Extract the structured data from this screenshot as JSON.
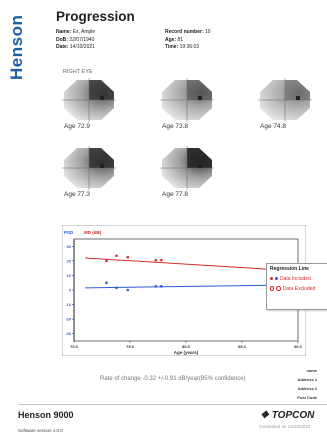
{
  "brand": "Henson",
  "report": {
    "title": "Progression"
  },
  "patient": {
    "name_label": "Name:",
    "name": "Ex, Ample",
    "dob_label": "DoB:",
    "dob": "22/07/1940",
    "date_label": "Date:",
    "date": "14/10/2021",
    "record_label": "Record number:",
    "record": "10",
    "age_label": "Age:",
    "age": "81",
    "time_label": "Time:",
    "time": "19:36:03"
  },
  "eye": "RIGHT EYE",
  "fields": [
    {
      "age": "Age 72.9",
      "darkness": 0.75
    },
    {
      "age": "Age 73.8",
      "darkness": 0.5
    },
    {
      "age": "Age 74.8",
      "darkness": 0.35
    },
    {
      "age": "Age 77.3",
      "darkness": 0.8
    },
    {
      "age": "Age 77.8",
      "darkness": 0.9
    }
  ],
  "chart_data": {
    "type": "scatter",
    "xlabel": "Age (years)",
    "y_axis_left_label": "PSD",
    "y_axis_right_label": "MD (dB)",
    "xlim": [
      70,
      90
    ],
    "ylim": [
      -35,
      35
    ],
    "x_ticks": [
      70.0,
      75.0,
      80.0,
      85.0,
      90.0
    ],
    "x_tick_labels": [
      "70.0",
      "75.0",
      "80.0",
      "85.0",
      "90.0"
    ],
    "y_ticks": [
      30,
      20,
      10,
      0,
      -10,
      -20,
      -30
    ],
    "y_tick_labels": [
      "30",
      "20",
      "10",
      "0",
      "-10",
      "-20",
      "-30"
    ],
    "series": [
      {
        "name": "MD",
        "color": "#d52b2b",
        "points": [
          [
            72.9,
            20
          ],
          [
            73.8,
            23.5
          ],
          [
            74.8,
            22.5
          ],
          [
            77.3,
            20.5
          ],
          [
            77.8,
            20.5
          ]
        ],
        "trend": [
          [
            71,
            22
          ],
          [
            90,
            13
          ]
        ]
      },
      {
        "name": "PSD",
        "color": "#2b5cd5",
        "points": [
          [
            72.9,
            5
          ],
          [
            73.8,
            1.5
          ],
          [
            74.8,
            0
          ],
          [
            77.3,
            2.5
          ],
          [
            77.8,
            2.5
          ]
        ],
        "trend": [
          [
            71,
            1.5
          ],
          [
            90,
            3.5
          ]
        ]
      }
    ],
    "legend": {
      "title": "Regression Line",
      "included": "Data Included",
      "excluded": "Data Excluded",
      "placement": "right"
    }
  },
  "rate_text": "Rate of change -0.32 +/-0.91 dB/year(95% confidence)",
  "address": {
    "name": "name",
    "line1": "Address 1",
    "line2": "Address 2",
    "post": "Post Code"
  },
  "footer": {
    "product": "Henson 9000",
    "version": "Software version 4.0.0",
    "logo": "TOPCON",
    "generated": "Generated on 14/10/2021"
  },
  "colors": {
    "brand": "#1f5fa8",
    "md": "#d52b2b",
    "psd": "#2b5cd5"
  }
}
